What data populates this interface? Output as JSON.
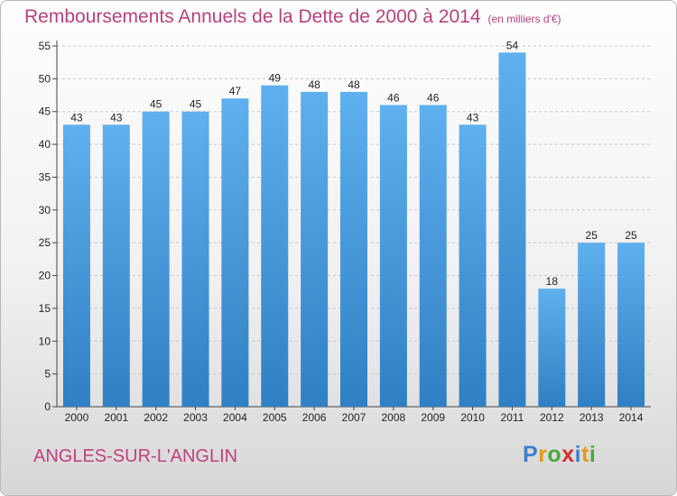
{
  "title": "Remboursements Annuels de la Dette de 2000 à 2014",
  "subtitle": "(en milliers d'€)",
  "place": "ANGLES-SUR-L'ANGLIN",
  "logo": {
    "letters": [
      "P",
      "r",
      "o",
      "x",
      "i",
      "t",
      "i"
    ],
    "colors": [
      "#3d7fcc",
      "#e39a17",
      "#49a83a",
      "#d42e2e",
      "#3d7fcc",
      "#e39a17",
      "#49a83a"
    ]
  },
  "colors": {
    "bar_top": "#5fb0ee",
    "bar_bottom": "#2f7fc4",
    "title": "#b8417e"
  },
  "chart_data": {
    "type": "bar",
    "title": "Remboursements Annuels de la Dette de 2000 à 2014",
    "subtitle": "(en milliers d'€)",
    "categories": [
      "2000",
      "2001",
      "2002",
      "2003",
      "2004",
      "2005",
      "2006",
      "2007",
      "2008",
      "2009",
      "2010",
      "2011",
      "2012",
      "2013",
      "2014"
    ],
    "values": [
      43,
      43,
      45,
      45,
      47,
      49,
      48,
      48,
      46,
      46,
      43,
      54,
      18,
      25,
      25
    ],
    "ylim": [
      0,
      55
    ],
    "yticks": [
      0,
      5,
      10,
      15,
      20,
      25,
      30,
      35,
      40,
      45,
      50,
      55
    ],
    "grid": "horizontal-dashed",
    "legend": "none",
    "data_labels": true
  }
}
